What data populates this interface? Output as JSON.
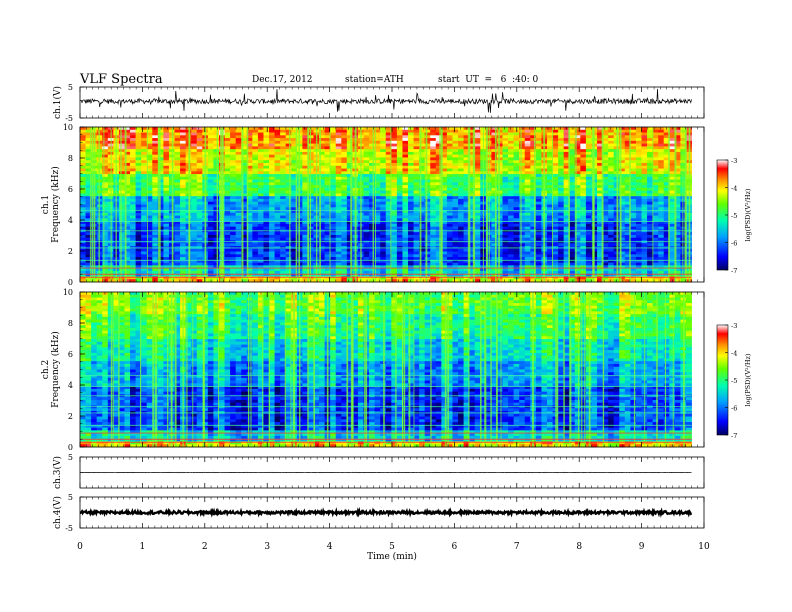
{
  "header": {
    "title": "VLF  Spectra",
    "date": "Dec.17, 2012",
    "station": "station=ATH",
    "start": "start  UT  =   6  :40: 0"
  },
  "chart_data": [
    {
      "type": "line",
      "panel": "ch1-waveform",
      "ylabel": "ch.1(V)",
      "ylim": [
        -5,
        5
      ],
      "y_ticks": [
        "5",
        "-5"
      ],
      "xlim": [
        0,
        10
      ],
      "x_end": 9.8
    },
    {
      "type": "heatmap",
      "panel": "ch1-spectrogram",
      "ylabel_line1": "ch.1",
      "ylabel_line2": "Frequency  (kHz)",
      "ylim": [
        0,
        10
      ],
      "y_ticks": [
        "0",
        "2",
        "4",
        "6",
        "8",
        "10"
      ],
      "xlim": [
        0,
        10
      ],
      "x_end": 9.8,
      "colorbar": {
        "label": "log(PSD)(V²/Hz)",
        "range": [
          -7,
          -3
        ],
        "ticks": [
          "-3",
          "-4",
          "-5",
          "-6",
          "-7"
        ]
      }
    },
    {
      "type": "heatmap",
      "panel": "ch2-spectrogram",
      "ylabel_line1": "ch.2",
      "ylabel_line2": "Frequency  (kHz)",
      "ylim": [
        0,
        10
      ],
      "y_ticks": [
        "0",
        "2",
        "4",
        "6",
        "8",
        "10"
      ],
      "xlim": [
        0,
        10
      ],
      "x_end": 9.8,
      "colorbar": {
        "label": "log(PSD)(V²/Hz)",
        "range": [
          -7,
          -3
        ],
        "ticks": [
          "-3",
          "-4",
          "-5",
          "-6",
          "-7"
        ]
      }
    },
    {
      "type": "line",
      "panel": "ch3-waveform",
      "ylabel": "ch.3(V)",
      "ylim": [
        -5,
        5
      ],
      "y_ticks": [
        "5"
      ],
      "xlim": [
        0,
        10
      ],
      "x_end": 9.8
    },
    {
      "type": "line",
      "panel": "ch4-waveform",
      "ylabel": "ch.4(V)",
      "ylim": [
        -5,
        5
      ],
      "y_ticks": [
        "5",
        "-5"
      ],
      "xlim": [
        0,
        10
      ],
      "x_end": 9.8
    }
  ],
  "x_axis": {
    "label": "Time  (min)",
    "ticks": [
      "0",
      "1",
      "2",
      "3",
      "4",
      "5",
      "6",
      "7",
      "8",
      "9",
      "10"
    ]
  }
}
